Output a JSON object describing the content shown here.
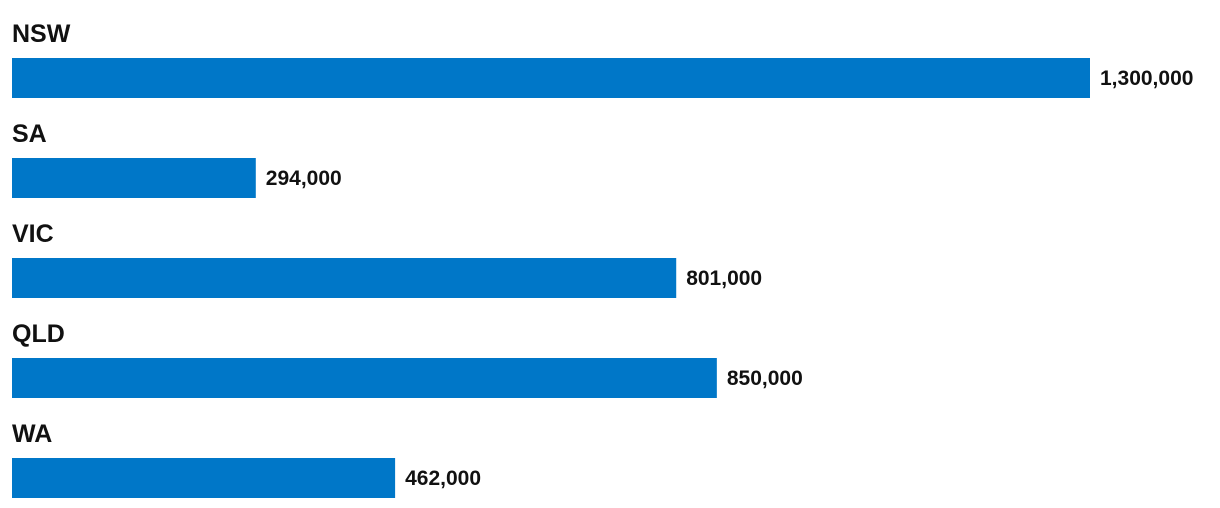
{
  "chart_data": {
    "type": "bar",
    "orientation": "horizontal",
    "categories": [
      "NSW",
      "SA",
      "VIC",
      "QLD",
      "WA"
    ],
    "values": [
      1300000,
      294000,
      801000,
      850000,
      462000
    ],
    "value_labels": [
      "1,300,000",
      "294,000",
      "801,000",
      "850,000",
      "462,000"
    ],
    "title": "",
    "xlabel": "",
    "ylabel": "",
    "xlim": [
      0,
      1300000
    ],
    "grid": false,
    "legend": "none",
    "bar_color": "#0077c8"
  }
}
